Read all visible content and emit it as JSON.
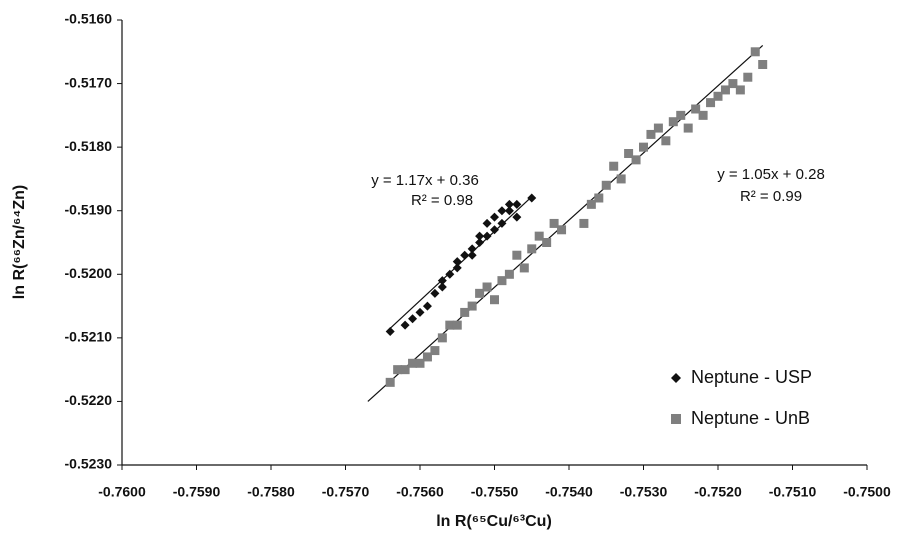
{
  "chart_data": {
    "type": "scatter",
    "x_label": "ln R(⁶⁵Cu/⁶³Cu)",
    "y_label": "ln R(⁶⁶Zn/⁶⁴Zn)",
    "xlim": [
      -0.76,
      -0.75
    ],
    "ylim": [
      -0.523,
      -0.516
    ],
    "xticks": [
      {
        "value": -0.76,
        "label": "-0.7600"
      },
      {
        "value": -0.759,
        "label": "-0.7590"
      },
      {
        "value": -0.758,
        "label": "-0.7580"
      },
      {
        "value": -0.757,
        "label": "-0.7570"
      },
      {
        "value": -0.756,
        "label": "-0.7560"
      },
      {
        "value": -0.755,
        "label": "-0.7550"
      },
      {
        "value": -0.754,
        "label": "-0.7540"
      },
      {
        "value": -0.753,
        "label": "-0.7530"
      },
      {
        "value": -0.752,
        "label": "-0.7520"
      },
      {
        "value": -0.751,
        "label": "-0.7510"
      },
      {
        "value": -0.75,
        "label": "-0.7500"
      }
    ],
    "yticks": [
      {
        "value": -0.523,
        "label": "-0.5230"
      },
      {
        "value": -0.522,
        "label": "-0.5220"
      },
      {
        "value": -0.521,
        "label": "-0.5210"
      },
      {
        "value": -0.52,
        "label": "-0.5200"
      },
      {
        "value": -0.519,
        "label": "-0.5190"
      },
      {
        "value": -0.518,
        "label": "-0.5180"
      },
      {
        "value": -0.517,
        "label": "-0.5170"
      },
      {
        "value": -0.516,
        "label": "-0.5160"
      }
    ],
    "grid": false,
    "legend_position": "lower-right",
    "series": [
      {
        "name": "Neptune - USP",
        "color": "#111111",
        "marker": "diamond",
        "x": [
          -0.7564,
          -0.7562,
          -0.7561,
          -0.756,
          -0.7559,
          -0.7558,
          -0.7557,
          -0.7557,
          -0.7556,
          -0.7555,
          -0.7555,
          -0.7554,
          -0.7553,
          -0.7553,
          -0.7552,
          -0.7552,
          -0.7551,
          -0.7551,
          -0.755,
          -0.755,
          -0.7549,
          -0.7549,
          -0.7548,
          -0.7548,
          -0.7547,
          -0.7547,
          -0.7545
        ],
        "values": [
          -0.5209,
          -0.5208,
          -0.5207,
          -0.5206,
          -0.5205,
          -0.5203,
          -0.5202,
          -0.5201,
          -0.52,
          -0.5199,
          -0.5198,
          -0.5197,
          -0.5196,
          -0.5197,
          -0.5195,
          -0.5194,
          -0.5194,
          -0.5192,
          -0.5193,
          -0.5191,
          -0.5192,
          -0.519,
          -0.519,
          -0.5189,
          -0.5191,
          -0.5189,
          -0.5188
        ]
      },
      {
        "name": "Neptune - UnB",
        "color": "#7f7f7f",
        "marker": "square",
        "x": [
          -0.7564,
          -0.7563,
          -0.7562,
          -0.7561,
          -0.756,
          -0.7559,
          -0.7558,
          -0.7557,
          -0.7556,
          -0.7555,
          -0.7554,
          -0.7553,
          -0.7552,
          -0.7551,
          -0.755,
          -0.7549,
          -0.7548,
          -0.7547,
          -0.7546,
          -0.7545,
          -0.7544,
          -0.7543,
          -0.7542,
          -0.7541,
          -0.7538,
          -0.7537,
          -0.7536,
          -0.7535,
          -0.7534,
          -0.7533,
          -0.7532,
          -0.7531,
          -0.753,
          -0.7529,
          -0.7528,
          -0.7527,
          -0.7526,
          -0.7525,
          -0.7524,
          -0.7523,
          -0.7522,
          -0.7521,
          -0.752,
          -0.7519,
          -0.7518,
          -0.7517,
          -0.7516,
          -0.7515,
          -0.7514
        ],
        "values": [
          -0.5217,
          -0.5215,
          -0.5215,
          -0.5214,
          -0.5214,
          -0.5213,
          -0.5212,
          -0.521,
          -0.5208,
          -0.5208,
          -0.5206,
          -0.5205,
          -0.5203,
          -0.5202,
          -0.5204,
          -0.5201,
          -0.52,
          -0.5197,
          -0.5199,
          -0.5196,
          -0.5194,
          -0.5195,
          -0.5192,
          -0.5193,
          -0.5192,
          -0.5189,
          -0.5188,
          -0.5186,
          -0.5183,
          -0.5185,
          -0.5181,
          -0.5182,
          -0.518,
          -0.5178,
          -0.5177,
          -0.5179,
          -0.5176,
          -0.5175,
          -0.5177,
          -0.5174,
          -0.5175,
          -0.5173,
          -0.5172,
          -0.5171,
          -0.517,
          -0.5171,
          -0.5169,
          -0.5165,
          -0.5167
        ]
      }
    ],
    "trendlines": [
      {
        "x": [
          -0.7564,
          -0.7545
        ],
        "values": [
          -0.52085,
          -0.51878
        ]
      },
      {
        "x": [
          -0.7567,
          -0.7514
        ],
        "values": [
          -0.522,
          -0.5164
        ]
      }
    ],
    "annotations": [
      {
        "equation": "y = 1.17x + 0.36",
        "r2": "R² = 0.98"
      },
      {
        "equation": "y = 1.05x + 0.28",
        "r2": "R² = 0.99"
      }
    ]
  }
}
